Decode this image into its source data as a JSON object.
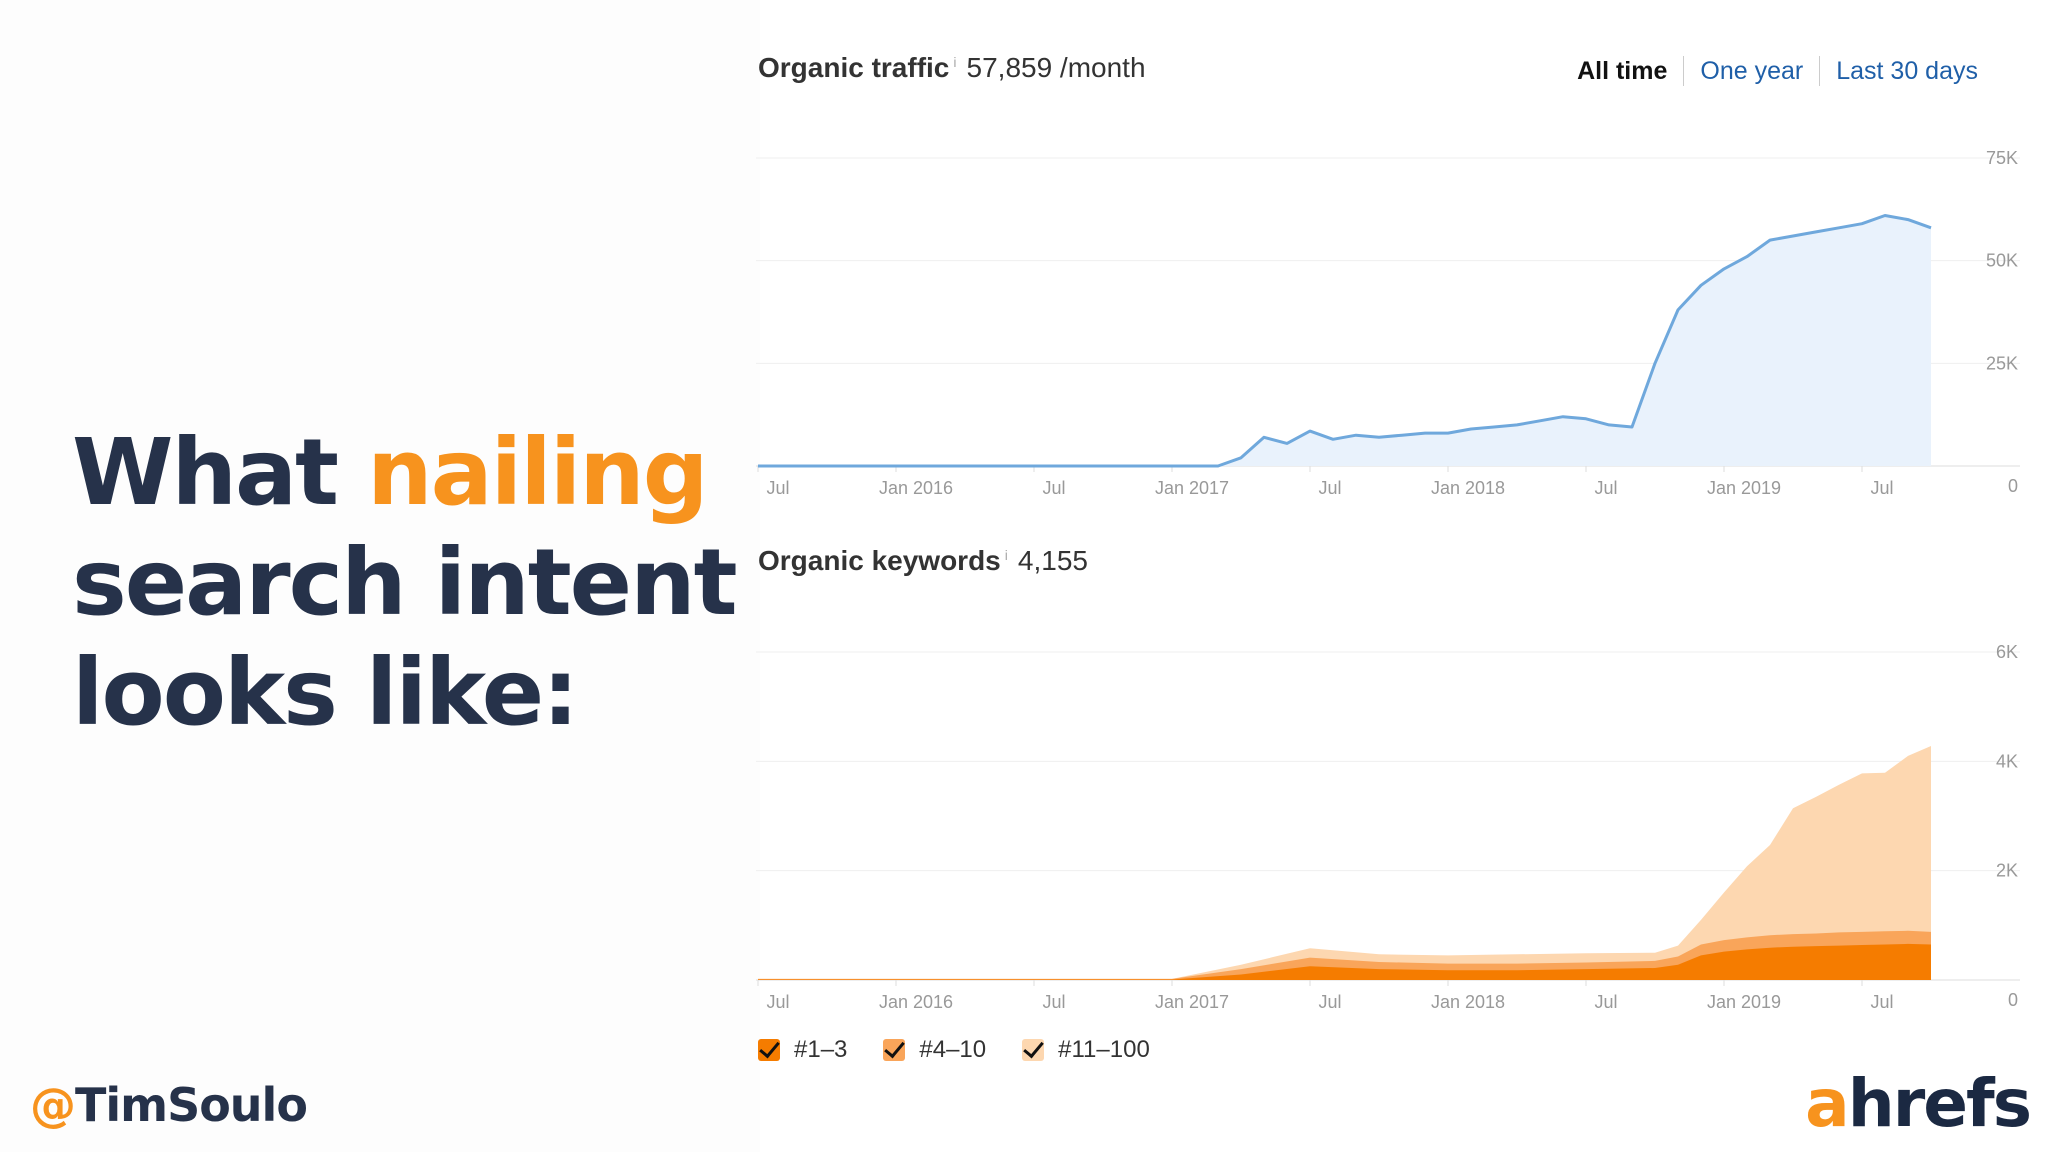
{
  "slide": {
    "headline_pre": "What ",
    "headline_highlight": "nailing",
    "headline_line2": "search intent",
    "headline_line3": "looks like:",
    "handle_at": "@",
    "handle_name": "TimSoulo",
    "logo_a": "a",
    "logo_rest": "hrefs"
  },
  "colors": {
    "accent": "#f7931e",
    "navy": "#26324a",
    "traffic_line": "#6fa8dc",
    "traffic_fill": "#e9f2fc",
    "kw_top3": "#f57c00",
    "kw_4_10": "#f9a55a",
    "kw_11_100": "#fdd7b0"
  },
  "traffic": {
    "title": "Organic traffic",
    "info": "i",
    "value": "57,859 /month",
    "ranges": [
      "All time",
      "One year",
      "Last 30 days"
    ]
  },
  "keywords": {
    "title": "Organic keywords",
    "info": "i",
    "value": "4,155"
  },
  "legend": [
    "#1–3",
    "#4–10",
    "#11–100"
  ],
  "chart_data": [
    {
      "type": "line",
      "title": "Organic traffic",
      "x_tick_labels": [
        "Jul",
        "Jan 2016",
        "Jul",
        "Jan 2017",
        "Jul",
        "Jan 2018",
        "Jul",
        "Jan 2019",
        "Jul"
      ],
      "y_tick_labels": [
        "0",
        "25K",
        "50K",
        "75K"
      ],
      "ylim": [
        0,
        75000
      ],
      "x": [
        "2015-07",
        "2015-10",
        "2016-01",
        "2016-04",
        "2016-07",
        "2016-10",
        "2017-01",
        "2017-03",
        "2017-04",
        "2017-05",
        "2017-06",
        "2017-07",
        "2017-08",
        "2017-09",
        "2017-10",
        "2017-11",
        "2017-12",
        "2018-01",
        "2018-02",
        "2018-03",
        "2018-04",
        "2018-05",
        "2018-06",
        "2018-07",
        "2018-08",
        "2018-09",
        "2018-10",
        "2018-11",
        "2018-12",
        "2019-01",
        "2019-02",
        "2019-03",
        "2019-04",
        "2019-05",
        "2019-06",
        "2019-07",
        "2019-08",
        "2019-09",
        "2019-10"
      ],
      "series": [
        {
          "values": [
            0,
            0,
            0,
            0,
            0,
            0,
            0,
            0,
            2000,
            7000,
            5500,
            8500,
            6500,
            7500,
            7000,
            7500,
            8000,
            8000,
            9000,
            9500,
            10000,
            11000,
            12000,
            11500,
            10000,
            9500,
            25000,
            38000,
            44000,
            48000,
            51000,
            55000,
            56000,
            57000,
            58000,
            59000,
            61000,
            60000,
            58000
          ]
        }
      ]
    },
    {
      "type": "area",
      "title": "Organic keywords",
      "x_tick_labels": [
        "Jul",
        "Jan 2016",
        "Jul",
        "Jan 2017",
        "Jul",
        "Jan 2018",
        "Jul",
        "Jan 2019",
        "Jul"
      ],
      "y_tick_labels": [
        "0",
        "2K",
        "4K",
        "6K"
      ],
      "ylim": [
        0,
        6000
      ],
      "stacked": true,
      "x": [
        "2015-07",
        "2016-01",
        "2016-07",
        "2017-01",
        "2017-04",
        "2017-07",
        "2017-10",
        "2018-01",
        "2018-04",
        "2018-07",
        "2018-10",
        "2018-11",
        "2018-12",
        "2019-01",
        "2019-02",
        "2019-03",
        "2019-04",
        "2019-05",
        "2019-06",
        "2019-07",
        "2019-08",
        "2019-09",
        "2019-10"
      ],
      "series": [
        {
          "name": "#1–3",
          "values": [
            10,
            10,
            10,
            10,
            100,
            250,
            200,
            180,
            180,
            200,
            220,
            280,
            450,
            520,
            560,
            590,
            610,
            620,
            630,
            640,
            650,
            660,
            650
          ]
        },
        {
          "name": "#4–10",
          "values": [
            10,
            10,
            10,
            10,
            100,
            160,
            130,
            120,
            120,
            120,
            130,
            150,
            200,
            210,
            220,
            230,
            230,
            230,
            240,
            240,
            240,
            240,
            230
          ]
        },
        {
          "name": "#11–100",
          "values": [
            0,
            0,
            0,
            0,
            80,
            170,
            140,
            150,
            170,
            170,
            150,
            200,
            450,
            870,
            1300,
            1650,
            2300,
            2500,
            2700,
            2900,
            2900,
            3200,
            3400
          ]
        }
      ]
    }
  ]
}
